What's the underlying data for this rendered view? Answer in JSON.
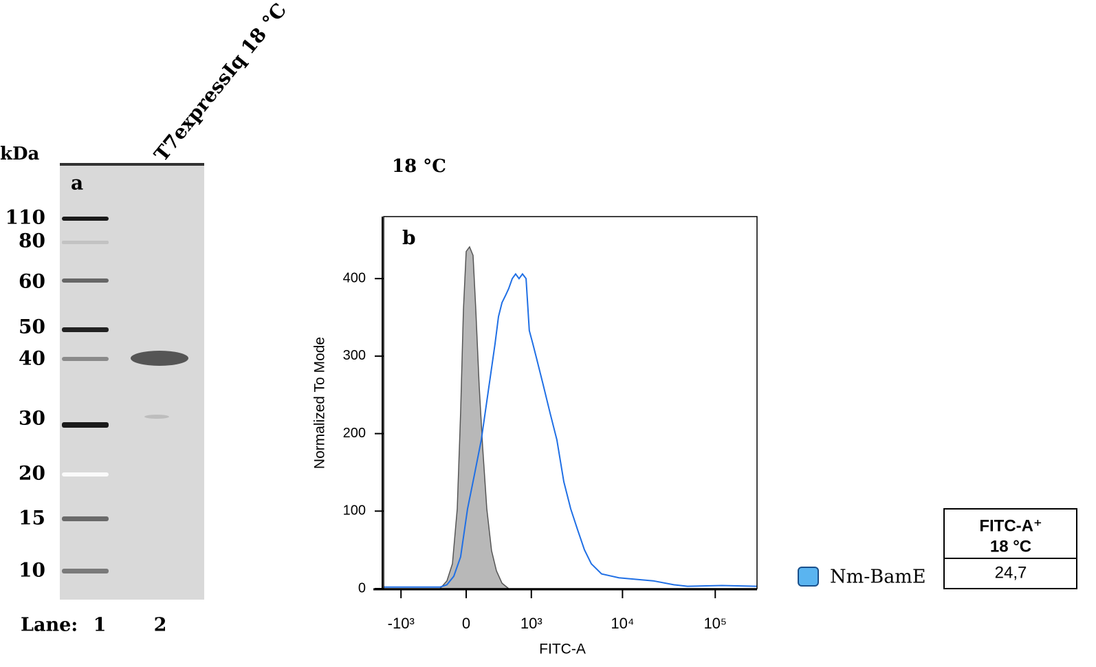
{
  "panel_a": {
    "label": "a",
    "title": "T7expressIq 18 °C",
    "unit": "kDa",
    "markers": [
      110,
      80,
      60,
      50,
      40,
      30,
      20,
      15,
      10
    ],
    "lane_label": "Lane:",
    "lanes": [
      "1",
      "2"
    ]
  },
  "chart_data": {
    "type": "line",
    "panel_label": "b",
    "title": "18 °C",
    "xlabel": "FITC-A",
    "ylabel": "Normalized To Mode",
    "xscale": "arcsinh",
    "xscale_cofactor": 413,
    "xlim": [
      -1574,
      282079
    ],
    "ylim": [
      0,
      480
    ],
    "xticks": [
      {
        "value": -1000,
        "label": "-10³"
      },
      0,
      {
        "value": 1000,
        "label": "10³"
      },
      {
        "value": 10000,
        "label": "10⁴"
      },
      {
        "value": 100000,
        "label": "10⁵"
      }
    ],
    "yticks": [
      0,
      100,
      200,
      300,
      400
    ],
    "series": [
      {
        "color": "#555555",
        "fill": "#b8b8b8",
        "x": [
          -287,
          -205,
          -144,
          -92,
          -57,
          -28,
          0,
          35,
          71,
          100,
          136,
          174,
          221,
          278,
          340,
          418,
          521
        ],
        "values": [
          0,
          10,
          32,
          103,
          227,
          360,
          435,
          441,
          430,
          360,
          262,
          182,
          103,
          49,
          23,
          7,
          0
        ]
      },
      {
        "name": "Nm-BamE",
        "color": "#1f6fe5",
        "legend_color": "#5ab4f0",
        "x": [
          -1574,
          -287,
          -205,
          -129,
          -57,
          14,
          85,
          159,
          237,
          322,
          368,
          418,
          469,
          521,
          582,
          644,
          712,
          785,
          867,
          946,
          1041,
          1144,
          1367,
          1627,
          1941,
          2313,
          2751,
          3267,
          3878,
          4605,
          5947,
          9127,
          13959,
          21435,
          35725,
          50262,
          117912,
          282079
        ],
        "values": [
          2,
          2,
          5,
          16,
          41,
          103,
          147,
          192,
          254,
          316,
          351,
          369,
          378,
          387,
          400,
          406,
          400,
          406,
          400,
          333,
          316,
          298,
          263,
          227,
          192,
          138,
          103,
          76,
          50,
          32,
          19,
          14,
          12,
          10,
          5,
          3,
          4,
          3
        ]
      }
    ]
  },
  "table": {
    "header": [
      "FITC-A⁺",
      "18 °C"
    ],
    "rows": [
      [
        "24,7"
      ]
    ]
  }
}
